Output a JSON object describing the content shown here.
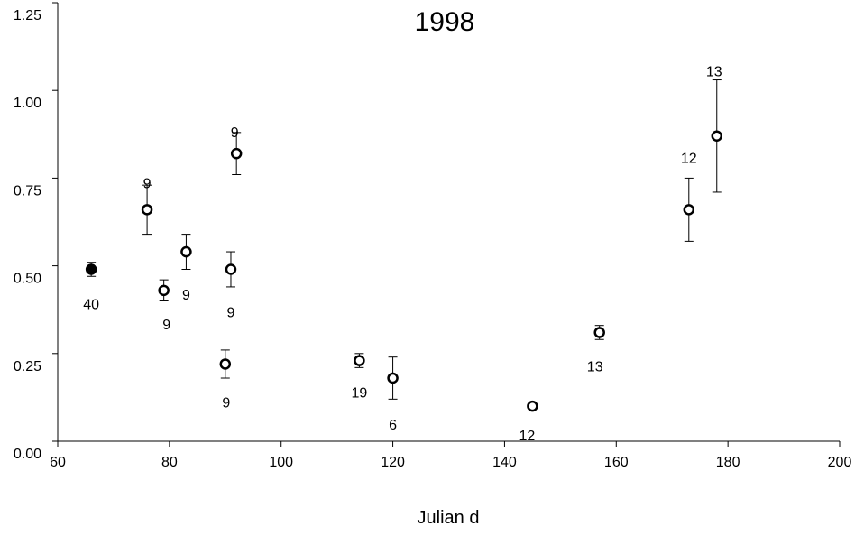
{
  "chart_data": {
    "type": "scatter",
    "title": "1998",
    "xlabel": "Julian d",
    "ylabel": "",
    "xlim": [
      60,
      200
    ],
    "ylim": [
      0,
      1.25
    ],
    "xticks": [
      "60",
      "80",
      "100",
      "120",
      "140",
      "160",
      "180",
      "200"
    ],
    "yticks": [
      "0.00",
      "0.25",
      "0.50",
      "0.75",
      "1.00",
      "1.25"
    ],
    "grid": false,
    "series": [
      {
        "marker": "filled-circle",
        "points": [
          {
            "x": 66,
            "y": 0.49,
            "err": 0.02,
            "n": "40"
          }
        ]
      },
      {
        "marker": "open-circle",
        "points": [
          {
            "x": 76,
            "y": 0.66,
            "err": 0.07,
            "n": "9"
          },
          {
            "x": 79,
            "y": 0.43,
            "err": 0.03,
            "n": "9"
          },
          {
            "x": 83,
            "y": 0.54,
            "err": 0.05,
            "n": "9"
          },
          {
            "x": 90,
            "y": 0.22,
            "err": 0.04,
            "n": "9"
          },
          {
            "x": 91,
            "y": 0.49,
            "err": 0.05,
            "n": "9"
          },
          {
            "x": 92,
            "y": 0.82,
            "err": 0.06,
            "n": "9"
          },
          {
            "x": 114,
            "y": 0.23,
            "err": 0.02,
            "n": "19"
          },
          {
            "x": 120,
            "y": 0.18,
            "err": 0.06,
            "n": "6"
          },
          {
            "x": 145,
            "y": 0.1,
            "err": 0.0,
            "n": "12"
          },
          {
            "x": 157,
            "y": 0.31,
            "err": 0.02,
            "n": "13"
          },
          {
            "x": 173,
            "y": 0.66,
            "err": 0.09,
            "n": "12"
          },
          {
            "x": 178,
            "y": 0.87,
            "err": 0.16,
            "n": "13"
          }
        ]
      }
    ]
  }
}
